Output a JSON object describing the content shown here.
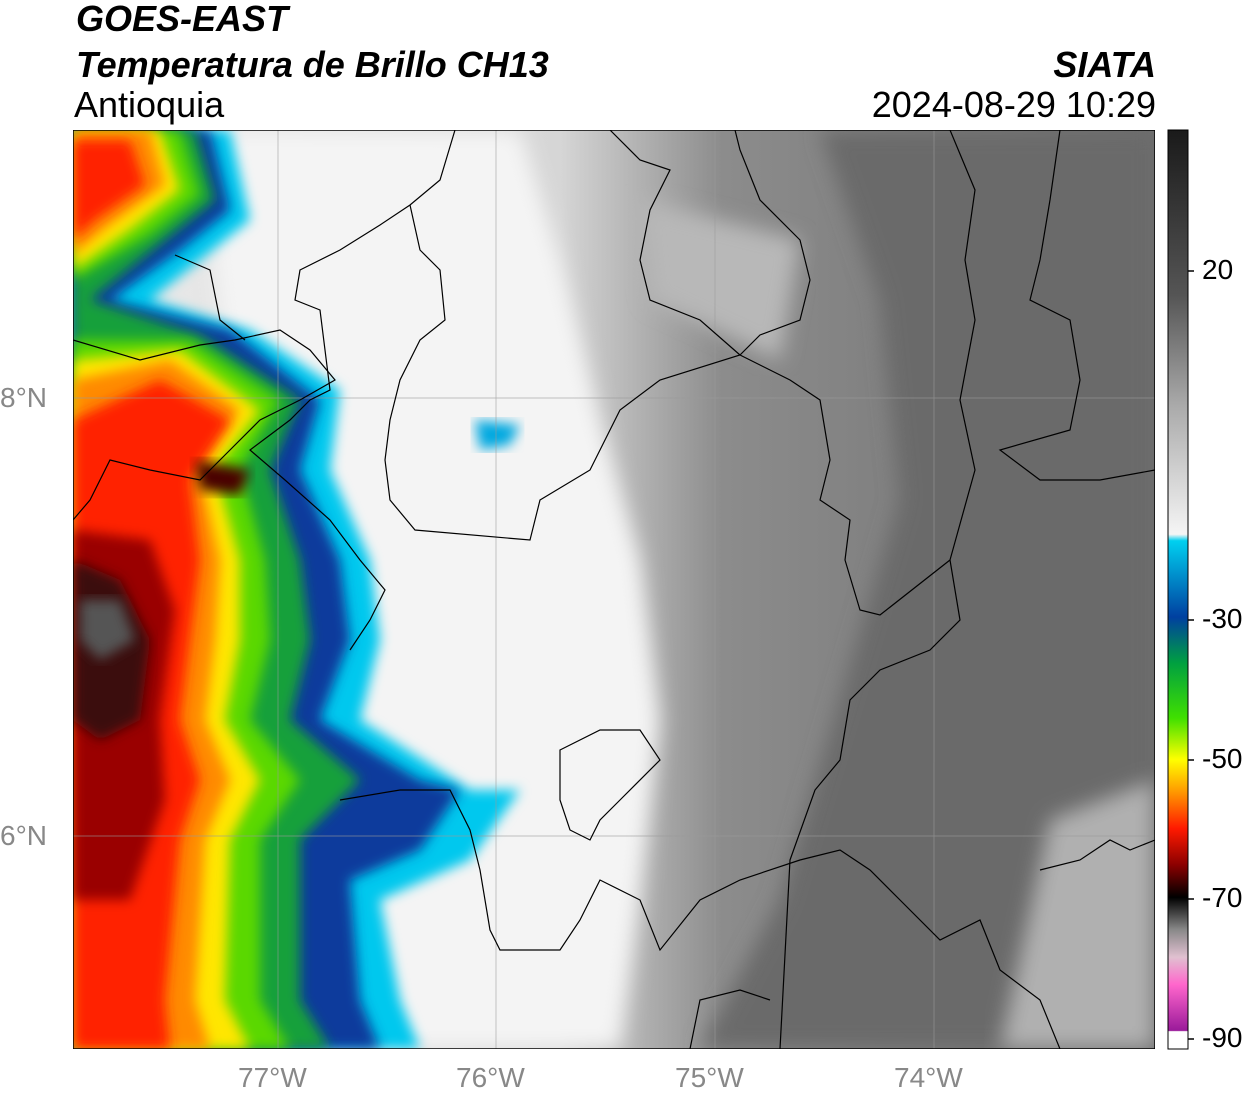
{
  "header": {
    "satellite": "GOES-EAST",
    "product": "Temperatura de Brillo CH13",
    "region": "Antioquia",
    "agency": "SIATA",
    "datetime": "2024-08-29 10:29"
  },
  "axes": {
    "lon_ticks": [
      "77°W",
      "76°W",
      "75°W",
      "74°W"
    ],
    "lat_ticks": [
      "8°N",
      "6°N"
    ]
  },
  "colorbar": {
    "tick_labels": [
      "20",
      "-30",
      "-50",
      "-70",
      "-90"
    ],
    "stops": [
      "#1a1a1a",
      "#555555",
      "#aaaaaa",
      "#f5f5f5",
      "#00d0f0",
      "#0040a0",
      "#00a040",
      "#40e000",
      "#ffff00",
      "#ff9900",
      "#ff1a00",
      "#8a0000",
      "#000000",
      "#888888",
      "#e0c0d0",
      "#ff66cc",
      "#9a1a9a",
      "#ffffff"
    ]
  }
}
